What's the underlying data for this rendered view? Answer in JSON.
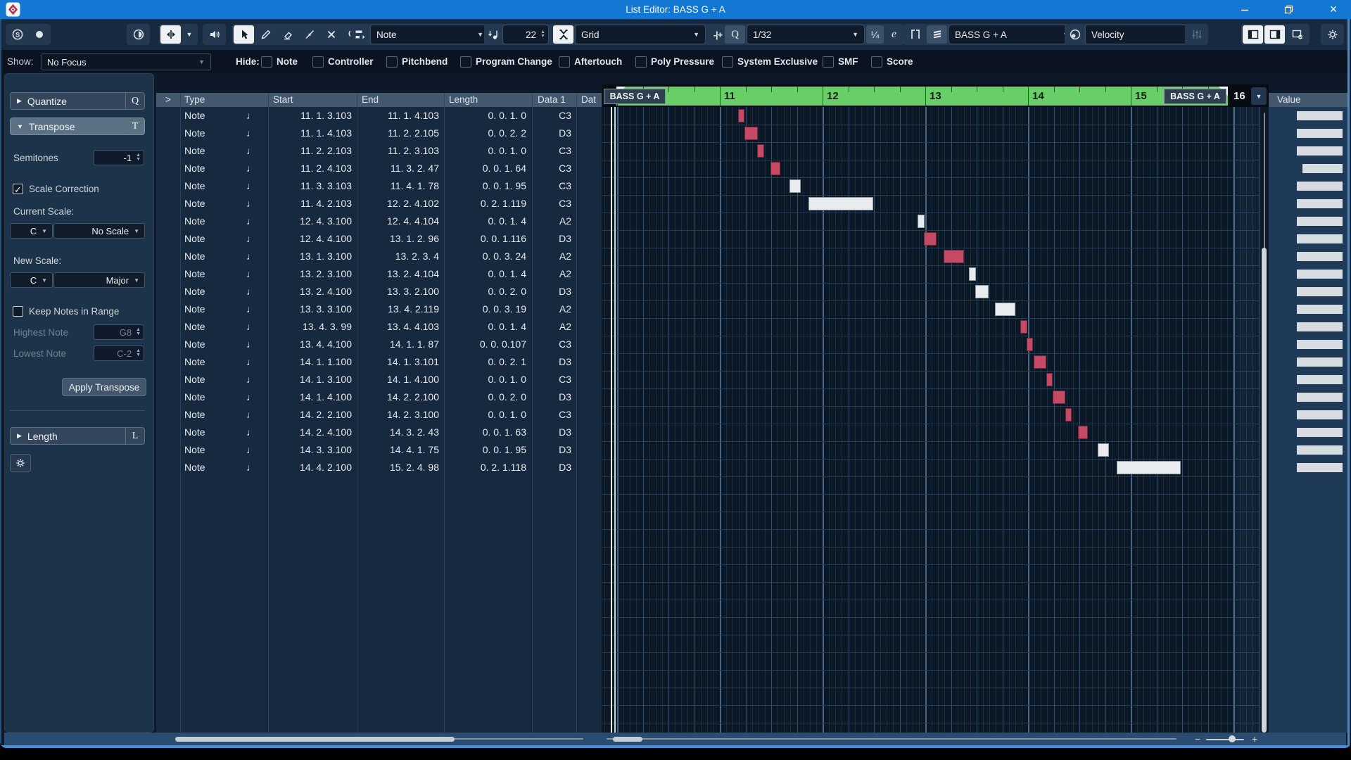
{
  "window": {
    "title": "List Editor: BASS G + A"
  },
  "toolbar": {
    "insert_type": "Note",
    "insert_velocity": "22",
    "snap_type": "Grid",
    "zero_crossing": "-|+",
    "quantize_letter": "Q",
    "quantize_preset": "1/32",
    "iterative_quantize": "¼",
    "open_quantize_panel": "e",
    "part": "BASS G + A",
    "event_colors": "Velocity",
    "solo_letter": "S"
  },
  "filterbar": {
    "show_label": "Show:",
    "show_value": "No Focus",
    "hide_label": "Hide:",
    "hide_items": [
      "Note",
      "Controller",
      "Pitchbend",
      "Program Change",
      "Aftertouch",
      "Poly Pressure",
      "System Exclusive",
      "SMF",
      "Score"
    ]
  },
  "inspector": {
    "quantize_title": "Quantize",
    "quantize_badge": "Q",
    "transpose_title": "Transpose",
    "transpose_badge": "T",
    "semitones_label": "Semitones",
    "semitones_value": "-1",
    "scale_correction_label": "Scale Correction",
    "scale_correction_check": "✓",
    "current_scale_label": "Current Scale:",
    "current_root": "C",
    "current_scale": "No Scale",
    "new_scale_label": "New Scale:",
    "new_root": "C",
    "new_scale": "Major",
    "keep_notes_label": "Keep Notes in Range",
    "highest_label": "Highest Note",
    "highest_value": "G8",
    "lowest_label": "Lowest Note",
    "lowest_value": "C-2",
    "apply_label": "Apply Transpose",
    "length_title": "Length",
    "length_badge": "L"
  },
  "list": {
    "columns": [
      ">",
      "Type",
      "Start",
      "End",
      "Length",
      "Data 1",
      "Dat"
    ],
    "note_glyph": "♩",
    "rows": [
      {
        "type": "Note",
        "start": "11. 1. 3.103",
        "end": "11. 1. 4.103",
        "length": "0. 0. 1. 0",
        "data1": "C3",
        "color": "red",
        "value": 103
      },
      {
        "type": "Note",
        "start": "11. 1. 4.103",
        "end": "11. 2. 2.105",
        "length": "0. 0. 2. 2",
        "data1": "D3",
        "color": "red",
        "value": 103
      },
      {
        "type": "Note",
        "start": "11. 2. 2.103",
        "end": "11. 2. 3.103",
        "length": "0. 0. 1. 0",
        "data1": "C3",
        "color": "red",
        "value": 103
      },
      {
        "type": "Note",
        "start": "11. 2. 4.103",
        "end": "11. 3. 2. 47",
        "length": "0. 0. 1. 64",
        "data1": "C3",
        "color": "red",
        "value": 91
      },
      {
        "type": "Note",
        "start": "11. 3. 3.103",
        "end": "11. 4. 1. 78",
        "length": "0. 0. 1. 95",
        "data1": "C3",
        "color": "white",
        "value": 103
      },
      {
        "type": "Note",
        "start": "11. 4. 2.103",
        "end": "12. 2. 4.102",
        "length": "0. 2. 1.119",
        "data1": "C3",
        "color": "white",
        "value": 103
      },
      {
        "type": "Note",
        "start": "12. 4. 3.100",
        "end": "12. 4. 4.104",
        "length": "0. 0. 1. 4",
        "data1": "A2",
        "color": "white",
        "value": 103
      },
      {
        "type": "Note",
        "start": "12. 4. 4.100",
        "end": "13. 1. 2. 96",
        "length": "0. 0. 1.116",
        "data1": "D3",
        "color": "red",
        "value": 103
      },
      {
        "type": "Note",
        "start": "13. 1. 3.100",
        "end": "13. 2. 3. 4",
        "length": "0. 0. 3. 24",
        "data1": "A2",
        "color": "red",
        "value": 103
      },
      {
        "type": "Note",
        "start": "13. 2. 3.100",
        "end": "13. 2. 4.104",
        "length": "0. 0. 1. 4",
        "data1": "A2",
        "color": "white",
        "value": 103
      },
      {
        "type": "Note",
        "start": "13. 2. 4.100",
        "end": "13. 3. 2.100",
        "length": "0. 0. 2. 0",
        "data1": "D3",
        "color": "white",
        "value": 103
      },
      {
        "type": "Note",
        "start": "13. 3. 3.100",
        "end": "13. 4. 2.119",
        "length": "0. 0. 3. 19",
        "data1": "A2",
        "color": "white",
        "value": 103
      },
      {
        "type": "Note",
        "start": "13. 4. 3. 99",
        "end": "13. 4. 4.103",
        "length": "0. 0. 1. 4",
        "data1": "A2",
        "color": "red",
        "value": 103
      },
      {
        "type": "Note",
        "start": "13. 4. 4.100",
        "end": "14. 1. 1. 87",
        "length": "0. 0. 0.107",
        "data1": "C3",
        "color": "red",
        "value": 103
      },
      {
        "type": "Note",
        "start": "14. 1. 1.100",
        "end": "14. 1. 3.101",
        "length": "0. 0. 2. 1",
        "data1": "D3",
        "color": "red",
        "value": 103
      },
      {
        "type": "Note",
        "start": "14. 1. 3.100",
        "end": "14. 1. 4.100",
        "length": "0. 0. 1. 0",
        "data1": "C3",
        "color": "red",
        "value": 103
      },
      {
        "type": "Note",
        "start": "14. 1. 4.100",
        "end": "14. 2. 2.100",
        "length": "0. 0. 2. 0",
        "data1": "D3",
        "color": "red",
        "value": 103
      },
      {
        "type": "Note",
        "start": "14. 2. 2.100",
        "end": "14. 2. 3.100",
        "length": "0. 0. 1. 0",
        "data1": "C3",
        "color": "red",
        "value": 103
      },
      {
        "type": "Note",
        "start": "14. 2. 4.100",
        "end": "14. 3. 2. 43",
        "length": "0. 0. 1. 63",
        "data1": "D3",
        "color": "red",
        "value": 103
      },
      {
        "type": "Note",
        "start": "14. 3. 3.100",
        "end": "14. 4. 1. 75",
        "length": "0. 0. 1. 95",
        "data1": "D3",
        "color": "white",
        "value": 103
      },
      {
        "type": "Note",
        "start": "14. 4. 2.100",
        "end": "15. 2. 4. 98",
        "length": "0. 2. 1.118",
        "data1": "D3",
        "color": "white",
        "value": 103
      }
    ]
  },
  "ruler": {
    "part_label": "BASS G + A",
    "bar_numbers": [
      11,
      12,
      13,
      14,
      15,
      16
    ]
  },
  "value_column": {
    "header": "Value"
  }
}
